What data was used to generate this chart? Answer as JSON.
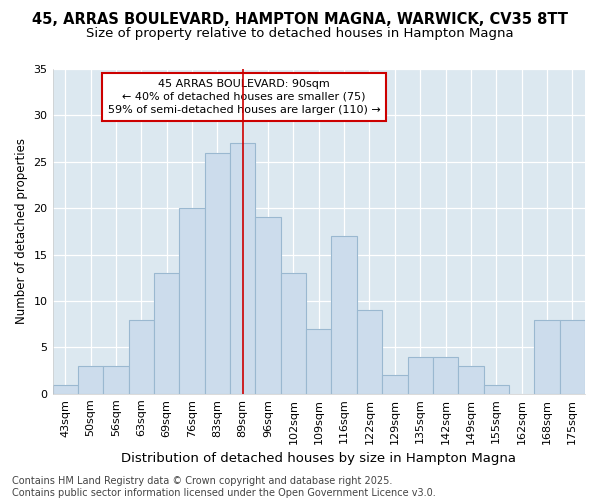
{
  "title": "45, ARRAS BOULEVARD, HAMPTON MAGNA, WARWICK, CV35 8TT",
  "subtitle": "Size of property relative to detached houses in Hampton Magna",
  "xlabel": "Distribution of detached houses by size in Hampton Magna",
  "ylabel": "Number of detached properties",
  "categories": [
    "43sqm",
    "50sqm",
    "56sqm",
    "63sqm",
    "69sqm",
    "76sqm",
    "83sqm",
    "89sqm",
    "96sqm",
    "102sqm",
    "109sqm",
    "116sqm",
    "122sqm",
    "129sqm",
    "135sqm",
    "142sqm",
    "149sqm",
    "155sqm",
    "162sqm",
    "168sqm",
    "175sqm"
  ],
  "values": [
    1,
    3,
    3,
    8,
    13,
    20,
    26,
    27,
    19,
    13,
    7,
    17,
    9,
    2,
    4,
    4,
    3,
    1,
    0,
    8,
    8
  ],
  "bar_color": "#ccdcec",
  "bar_edge_color": "#9ab8d0",
  "vline_color": "#cc0000",
  "annotation_text": "45 ARRAS BOULEVARD: 90sqm\n← 40% of detached houses are smaller (75)\n59% of semi-detached houses are larger (110) →",
  "annotation_box_color": "#ffffff",
  "annotation_box_edge_color": "#cc0000",
  "ylim": [
    0,
    35
  ],
  "yticks": [
    0,
    5,
    10,
    15,
    20,
    25,
    30,
    35
  ],
  "fig_background_color": "#ffffff",
  "plot_background_color": "#dce8f0",
  "footer_text": "Contains HM Land Registry data © Crown copyright and database right 2025.\nContains public sector information licensed under the Open Government Licence v3.0.",
  "title_fontsize": 10.5,
  "subtitle_fontsize": 9.5,
  "xlabel_fontsize": 9.5,
  "ylabel_fontsize": 8.5,
  "tick_fontsize": 8,
  "annotation_fontsize": 8,
  "footer_fontsize": 7
}
